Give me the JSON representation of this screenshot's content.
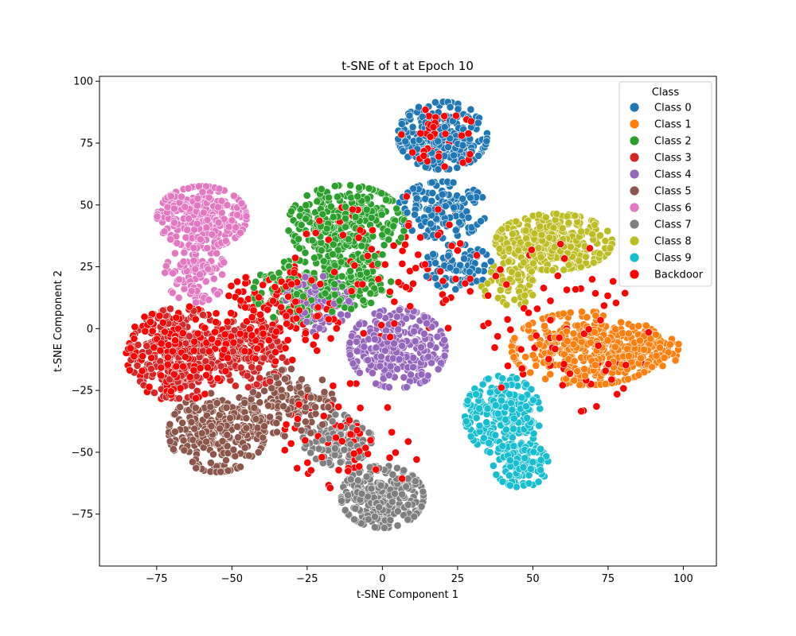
{
  "chart_data": {
    "type": "scatter",
    "title": "t-SNE of t at Epoch 10",
    "xlabel": "t-SNE Component 1",
    "ylabel": "t-SNE Component 2",
    "xlim": [
      -94,
      111
    ],
    "ylim": [
      -96,
      102
    ],
    "xticks": [
      -75,
      -50,
      -25,
      0,
      25,
      50,
      75,
      100
    ],
    "yticks": [
      -75,
      -50,
      -25,
      0,
      25,
      50,
      75,
      100
    ],
    "xtick_labels": [
      "−75",
      "−50",
      "−25",
      "0",
      "25",
      "50",
      "75",
      "100"
    ],
    "ytick_labels": [
      "−75",
      "−50",
      "−25",
      "0",
      "25",
      "50",
      "75",
      "100"
    ],
    "grid": false,
    "legend": {
      "title": "Class",
      "position": "top-right"
    },
    "series": [
      {
        "name": "Class 0",
        "color": "#1f77b4",
        "clusters": [
          {
            "cx": 20,
            "cy": 78,
            "rx": 13,
            "ry": 12,
            "n": 260
          },
          {
            "cx": 20,
            "cy": 48,
            "rx": 13,
            "ry": 10,
            "n": 150
          },
          {
            "cx": 25,
            "cy": 25,
            "rx": 10,
            "ry": 8,
            "n": 80
          }
        ]
      },
      {
        "name": "Class 1",
        "color": "#ff7f0e",
        "clusters": [
          {
            "cx": 68,
            "cy": -8,
            "rx": 22,
            "ry": 13,
            "n": 430
          },
          {
            "cx": 88,
            "cy": -9,
            "rx": 10,
            "ry": 6,
            "n": 90
          }
        ]
      },
      {
        "name": "Class 2",
        "color": "#2ca02c",
        "clusters": [
          {
            "cx": -12,
            "cy": 42,
            "rx": 17,
            "ry": 14,
            "n": 330
          },
          {
            "cx": -28,
            "cy": 15,
            "rx": 13,
            "ry": 11,
            "n": 140
          },
          {
            "cx": -8,
            "cy": 18,
            "rx": 10,
            "ry": 9,
            "n": 90
          }
        ]
      },
      {
        "name": "Class 3",
        "color": "#d62728",
        "clusters": [
          {
            "cx": -68,
            "cy": -10,
            "rx": 14,
            "ry": 16,
            "n": 320
          },
          {
            "cx": -45,
            "cy": -10,
            "rx": 12,
            "ry": 12,
            "n": 160
          }
        ]
      },
      {
        "name": "Class 4",
        "color": "#9467bd",
        "clusters": [
          {
            "cx": 5,
            "cy": -8,
            "rx": 14,
            "ry": 14,
            "n": 310
          },
          {
            "cx": -22,
            "cy": 10,
            "rx": 10,
            "ry": 10,
            "n": 110
          }
        ]
      },
      {
        "name": "Class 5",
        "color": "#8c564b",
        "clusters": [
          {
            "cx": -55,
            "cy": -42,
            "rx": 14,
            "ry": 14,
            "n": 300
          },
          {
            "cx": -30,
            "cy": -30,
            "rx": 12,
            "ry": 12,
            "n": 140
          }
        ]
      },
      {
        "name": "Class 6",
        "color": "#e377c2",
        "clusters": [
          {
            "cx": -60,
            "cy": 45,
            "rx": 13,
            "ry": 11,
            "n": 300
          },
          {
            "cx": -62,
            "cy": 22,
            "rx": 9,
            "ry": 10,
            "n": 100
          }
        ]
      },
      {
        "name": "Class 7",
        "color": "#7f7f7f",
        "clusters": [
          {
            "cx": 0,
            "cy": -68,
            "rx": 12,
            "ry": 11,
            "n": 300
          },
          {
            "cx": -15,
            "cy": -45,
            "rx": 10,
            "ry": 9,
            "n": 120
          }
        ]
      },
      {
        "name": "Class 8",
        "color": "#bcbd22",
        "clusters": [
          {
            "cx": 57,
            "cy": 35,
            "rx": 17,
            "ry": 10,
            "n": 380
          },
          {
            "cx": 42,
            "cy": 18,
            "rx": 8,
            "ry": 8,
            "n": 60
          }
        ]
      },
      {
        "name": "Class 9",
        "color": "#17becf",
        "clusters": [
          {
            "cx": 40,
            "cy": -35,
            "rx": 11,
            "ry": 14,
            "n": 250
          },
          {
            "cx": 46,
            "cy": -55,
            "rx": 8,
            "ry": 8,
            "n": 110
          }
        ]
      },
      {
        "name": "Backdoor",
        "color": "#ff0000",
        "clusters": [
          {
            "cx": -68,
            "cy": -10,
            "rx": 15,
            "ry": 17,
            "n": 160
          },
          {
            "cx": -35,
            "cy": 5,
            "rx": 18,
            "ry": 16,
            "n": 140
          },
          {
            "cx": 5,
            "cy": 25,
            "rx": 30,
            "ry": 25,
            "n": 90
          },
          {
            "cx": 20,
            "cy": 78,
            "rx": 12,
            "ry": 11,
            "n": 40
          },
          {
            "cx": 60,
            "cy": 0,
            "rx": 25,
            "ry": 30,
            "n": 70
          },
          {
            "cx": -10,
            "cy": -45,
            "rx": 20,
            "ry": 20,
            "n": 60
          }
        ]
      }
    ]
  }
}
